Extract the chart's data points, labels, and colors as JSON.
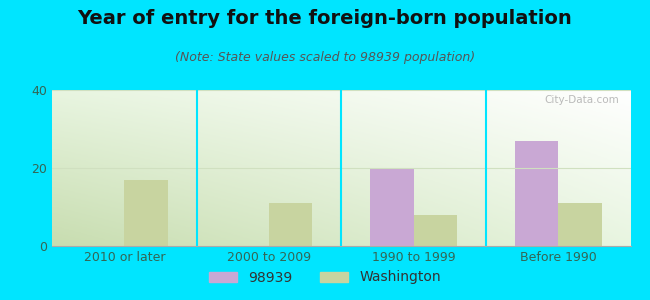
{
  "title": "Year of entry for the foreign-born population",
  "subtitle": "(Note: State values scaled to 98939 population)",
  "categories": [
    "2010 or later",
    "2000 to 2009",
    "1990 to 1999",
    "Before 1990"
  ],
  "series_98939": [
    0,
    0,
    20,
    27
  ],
  "series_washington": [
    17,
    11,
    8,
    11
  ],
  "color_98939": "#c9a8d4",
  "color_washington": "#c8d4a0",
  "ylim": [
    0,
    40
  ],
  "yticks": [
    0,
    20,
    40
  ],
  "background_outer": "#00e5ff",
  "background_plot_topleft": "#e8f5e0",
  "background_plot_topright": "#ffffff",
  "background_plot_bottomleft": "#c8ddb0",
  "background_plot_bottomright": "#e8f5e0",
  "bar_width": 0.3,
  "legend_label_98939": "98939",
  "legend_label_washington": "Washington",
  "title_fontsize": 14,
  "subtitle_fontsize": 9,
  "tick_fontsize": 9,
  "legend_fontsize": 10,
  "grid_color": "#d0e0c0",
  "tick_color": "#336655"
}
